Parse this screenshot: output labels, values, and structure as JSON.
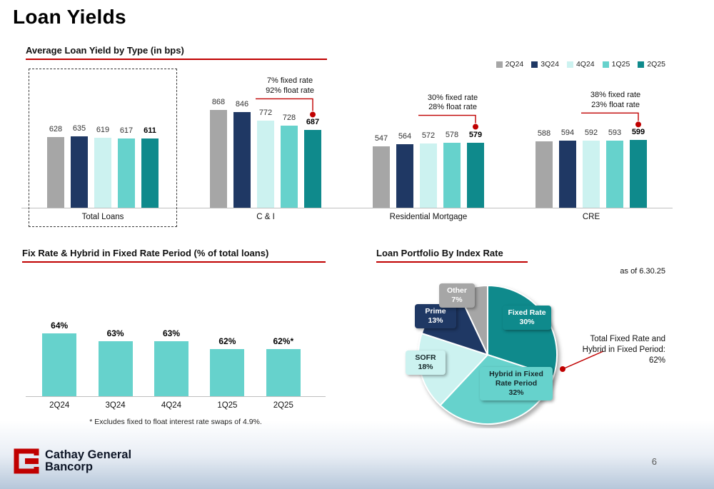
{
  "title": "Loan Yields",
  "page_number": "6",
  "logo": {
    "line1": "Cathay General",
    "line2": "Bancorp"
  },
  "colors": {
    "red": "#C00000",
    "gray": "#A6A6A6",
    "navy": "#1F3864",
    "pale": "#CCF2F0",
    "turquoise": "#66D2CC",
    "teal": "#0F8A8C"
  },
  "chart_data": [
    {
      "name": "average_loan_yield_by_type",
      "type": "bar",
      "title": "Average Loan Yield by Type (in bps)",
      "series_labels": [
        "2Q24",
        "3Q24",
        "4Q24",
        "1Q25",
        "2Q25"
      ],
      "ylim": [
        0,
        900
      ],
      "groups": [
        {
          "label": "Total Loans",
          "values": [
            628,
            635,
            619,
            617,
            611
          ],
          "boxed": true
        },
        {
          "label": "C & I",
          "values": [
            868,
            846,
            772,
            728,
            687
          ],
          "annotation": "7% fixed rate\n92% float rate"
        },
        {
          "label": "Residential Mortgage",
          "values": [
            547,
            564,
            572,
            578,
            579
          ],
          "annotation": "30% fixed rate\n28% float rate"
        },
        {
          "label": "CRE",
          "values": [
            588,
            594,
            592,
            593,
            599
          ],
          "annotation": "38% fixed rate\n23% float rate"
        }
      ]
    },
    {
      "name": "fix_rate_hybrid_in_fixed_rate_period",
      "type": "bar",
      "title": "Fix Rate & Hybrid in Fixed Rate Period (% of total loans)",
      "categories": [
        "2Q24",
        "3Q24",
        "4Q24",
        "1Q25",
        "2Q25"
      ],
      "values": [
        64,
        63,
        63,
        62,
        62
      ],
      "value_labels": [
        "64%",
        "63%",
        "63%",
        "62%",
        "62%*"
      ],
      "footnote": "* Excludes fixed to float interest rate swaps of 4.9%."
    },
    {
      "name": "loan_portfolio_by_index_rate",
      "type": "pie",
      "title": "Loan Portfolio By Index Rate",
      "as_of": "as of 6.30.25",
      "slices": [
        {
          "label": "Fixed Rate",
          "pct": 30,
          "color": "#0F8A8C",
          "text": "#FFFFFF"
        },
        {
          "label": "Hybrid in Fixed Rate Period",
          "pct": 32,
          "color": "#66D2CC",
          "text": "#16282a"
        },
        {
          "label": "SOFR",
          "pct": 18,
          "color": "#CCF2F0",
          "text": "#16282a"
        },
        {
          "label": "Prime",
          "pct": 13,
          "color": "#1F3864",
          "text": "#FFFFFF"
        },
        {
          "label": "Other",
          "pct": 7,
          "color": "#A6A6A6",
          "text": "#FFFFFF"
        }
      ],
      "annotation": "Total Fixed Rate and\nHybrid in Fixed Period:\n62%"
    }
  ]
}
